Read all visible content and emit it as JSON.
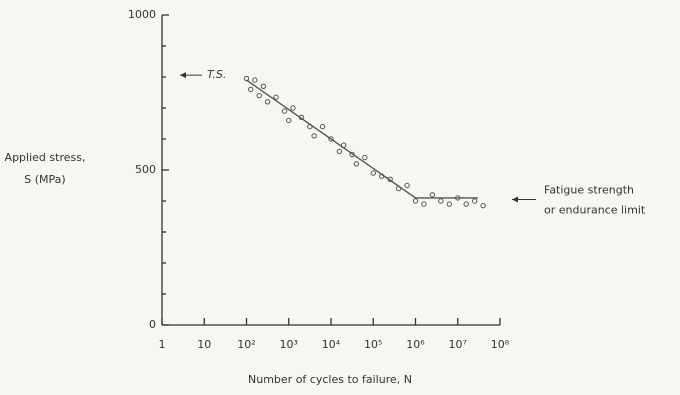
{
  "chart_data": {
    "type": "scatter",
    "log_x": true,
    "xlabel": "Number of cycles to failure, N",
    "ylabel": [
      "Applied stress,",
      "S (MPa)"
    ],
    "xlim": [
      1,
      100000000
    ],
    "ylim": [
      0,
      1000
    ],
    "xticks": [
      1,
      10,
      {
        "value": 100,
        "label": "10²"
      },
      {
        "value": 1000,
        "label": "10³"
      },
      {
        "value": 10000,
        "label": "10⁴"
      },
      {
        "value": 100000,
        "label": "10⁵"
      },
      {
        "value": 1000000,
        "label": "10⁶"
      },
      {
        "value": 10000000,
        "label": "10⁷"
      },
      {
        "value": 100000000,
        "label": "10⁸"
      }
    ],
    "yticks": [
      0,
      500,
      1000
    ],
    "yminorticks": [
      100,
      200,
      300,
      400,
      600,
      700,
      800,
      900
    ],
    "color": "#555555",
    "x": [
      100,
      126,
      158,
      200,
      251,
      316,
      501,
      794,
      1000,
      1259,
      1995,
      3162,
      3981,
      6310,
      10000,
      15849,
      19953,
      31623,
      39811,
      63096,
      100000,
      158489,
      251189,
      398107,
      630957,
      1000000,
      1584893,
      2511886,
      3981072,
      6309573,
      10000000,
      15848932,
      25118864,
      39810717
    ],
    "values": [
      795,
      760,
      790,
      740,
      770,
      720,
      735,
      690,
      660,
      700,
      670,
      640,
      610,
      640,
      600,
      560,
      580,
      550,
      520,
      540,
      490,
      480,
      470,
      440,
      450,
      400,
      390,
      420,
      400,
      390,
      410,
      390,
      400,
      385
    ],
    "curve": {
      "x": [
        100,
        1000000,
        30000000
      ],
      "values": [
        790,
        410,
        410
      ]
    },
    "annotations": [
      {
        "text": [
          "T.S."
        ],
        "y": 806,
        "side": "left"
      },
      {
        "text": [
          "Fatigue strength",
          "or endurance limit"
        ],
        "y": 405,
        "side": "right"
      }
    ]
  }
}
